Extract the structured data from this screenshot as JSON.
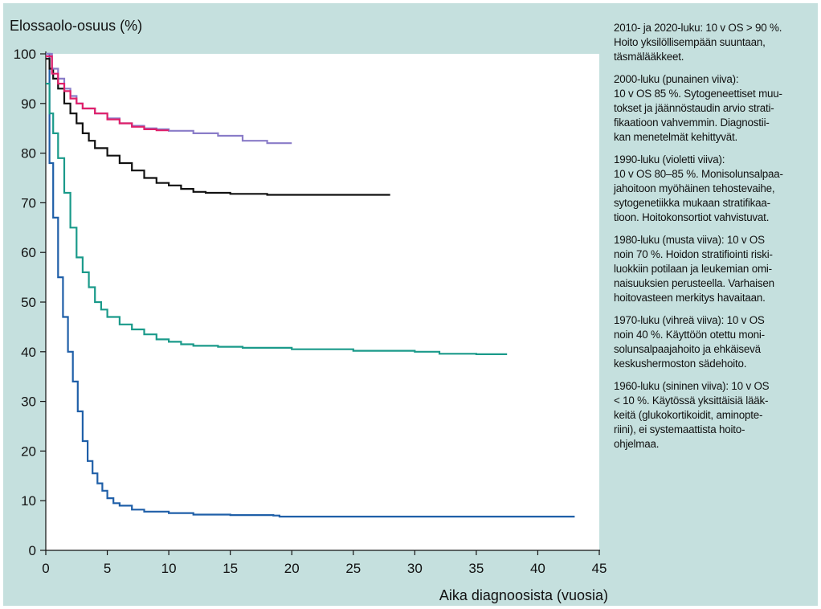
{
  "chart_data": {
    "type": "line",
    "title": "",
    "ylabel": "Elossaolo-osuus (%)",
    "xlabel": "Aika diagnoosista (vuosia)",
    "xlim": [
      0,
      45
    ],
    "ylim": [
      0,
      100
    ],
    "xticks": [
      0,
      5,
      10,
      15,
      20,
      25,
      30,
      35,
      40,
      45
    ],
    "yticks": [
      0,
      10,
      20,
      30,
      40,
      50,
      60,
      70,
      80,
      90,
      100
    ],
    "grid": false,
    "legend": "none",
    "series": [
      {
        "color": "#1f5fa8",
        "x": [
          0,
          0.3,
          0.6,
          1.0,
          1.4,
          1.8,
          2.2,
          2.6,
          3.0,
          3.4,
          3.8,
          4.2,
          4.6,
          5.0,
          5.5,
          6.0,
          7.0,
          8.0,
          10,
          12,
          15,
          18.5,
          19,
          25,
          30,
          35,
          40,
          43
        ],
        "y": [
          100,
          78,
          67,
          55,
          47,
          40,
          34,
          28,
          22,
          18,
          15.5,
          13.5,
          12,
          10.5,
          9.5,
          9.0,
          8.2,
          7.8,
          7.5,
          7.2,
          7.1,
          7.0,
          6.8,
          6.8,
          6.8,
          6.8,
          6.8,
          6.8
        ]
      },
      {
        "color": "#1a9a8a",
        "x": [
          0,
          0.3,
          0.6,
          1.0,
          1.5,
          2.0,
          2.5,
          3.0,
          3.5,
          4.0,
          4.5,
          5.0,
          6.0,
          7.0,
          8.0,
          9.0,
          10,
          11,
          12,
          14,
          16,
          20,
          25,
          30,
          32,
          35,
          37.5
        ],
        "y": [
          94,
          88,
          84,
          79,
          72,
          65,
          59,
          56,
          53,
          50,
          48.5,
          47,
          45.5,
          44.5,
          43.5,
          42.5,
          42,
          41.5,
          41.2,
          41,
          40.8,
          40.5,
          40.2,
          40,
          39.6,
          39.5,
          39.5
        ]
      },
      {
        "color": "#111111",
        "x": [
          0,
          0.3,
          0.6,
          1.0,
          1.5,
          2.0,
          2.5,
          3.0,
          3.5,
          4.0,
          5.0,
          6.0,
          7.0,
          8.0,
          9.0,
          10,
          11,
          12,
          13,
          15,
          18,
          20,
          25,
          28
        ],
        "y": [
          99,
          97,
          95,
          93,
          90,
          88,
          86,
          84,
          82.5,
          81,
          79.5,
          78,
          76.5,
          75,
          74,
          73.5,
          72.8,
          72.2,
          72,
          71.8,
          71.6,
          71.6,
          71.6,
          71.6
        ]
      },
      {
        "color": "#8a7cc8",
        "x": [
          0,
          0.5,
          1.0,
          1.5,
          2.0,
          2.5,
          3.0,
          4.0,
          5.0,
          6.0,
          7.0,
          8.0,
          9.0,
          10,
          12,
          14,
          16,
          18,
          20
        ],
        "y": [
          100,
          97,
          95,
          93,
          91.5,
          90,
          89,
          88,
          87,
          86,
          85.5,
          85,
          84.8,
          84.5,
          84,
          83.5,
          82.5,
          82,
          82
        ]
      },
      {
        "color": "#e0206a",
        "x": [
          0,
          0.5,
          1.0,
          1.5,
          2.0,
          2.5,
          3.0,
          4.0,
          5.0,
          6.0,
          7.0,
          8.0,
          9.0,
          10
        ],
        "y": [
          99.5,
          96,
          94,
          92.5,
          91,
          90,
          89,
          88,
          86.8,
          86,
          85.3,
          84.8,
          84.6,
          84.6
        ]
      }
    ]
  },
  "notes": [
    "2010- ja 2020-luku: 10 v OS > 90 %.\nHoito yksilöllisempään suuntaan,\ntäsmälääkkeet.",
    "2000-luku (punainen viiva):\n10 v OS 85 %. Sytogeneettiset muu-\ntokset ja jäännöstaudin arvio strati-\nfikaatioon vahvemmin. Diagnostii-\nkan menetelmät kehittyvät.",
    "1990-luku (violetti viiva):\n10 v OS 80–85 %. Monisolunsalpaa-\njahoitoon myöhäinen tehostevaihe,\nsytogenetiikka mukaan stratifikaa-\ntioon. Hoitokonsortiot vahvistuvat.",
    "1980-luku (musta viiva): 10 v OS\nnoin 70 %. Hoidon stratifiointi  riski-\nluokkiin potilaan ja leukemian omi-\nnaisuuksien perusteella. Varhaisen\nhoitovasteen merkitys havaitaan.",
    "1970-luku (vihreä viiva): 10 v OS\nnoin 40 %. Käyttöön otettu moni-\nsolunsalpaajahoito ja ehkäisevä\nkeskushermoston sädehoito.",
    "1960-luku (sininen viiva): 10 v OS\n< 10 %. Käytössä yksittäisiä lääk-\nkeitä (glukokortikoidit, aminopte-\nriini), ei systemaattista hoito-\nohjelmaa."
  ],
  "colors": {
    "panel_bg": "#c5e0de",
    "plot_bg": "#ffffff"
  }
}
